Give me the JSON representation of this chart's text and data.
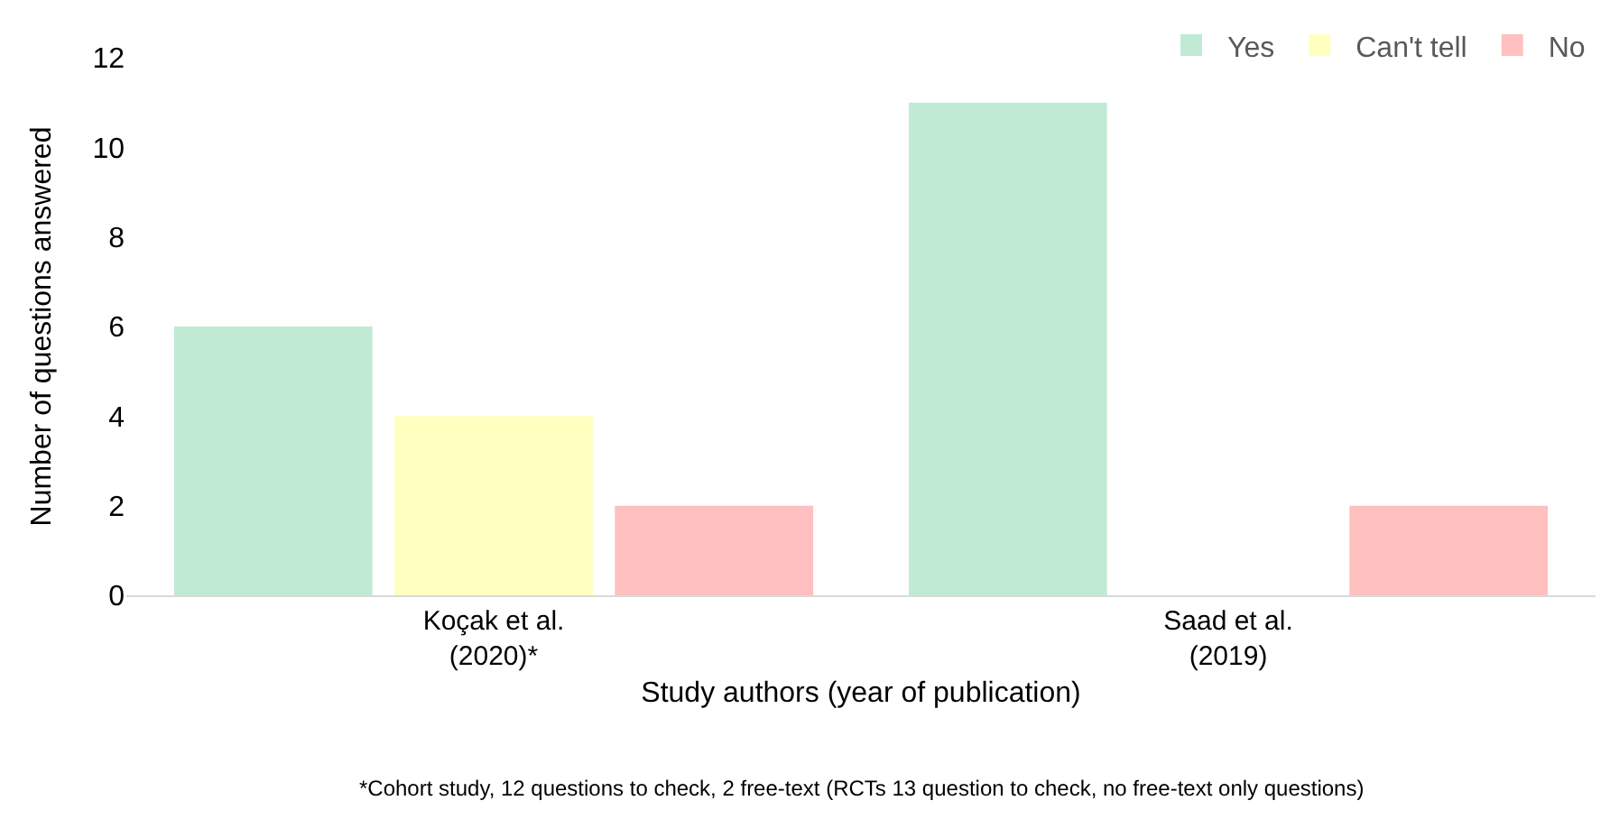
{
  "chart_data": {
    "type": "bar",
    "xlabel": "Study authors (year of publication)",
    "ylabel": "Number of questions answered",
    "categories": [
      "Koçak et al.\n(2020)*",
      "Saad et al.\n(2019)"
    ],
    "series": [
      {
        "name": "Yes",
        "color": "#c1ead5",
        "values": [
          6,
          11
        ]
      },
      {
        "name": "Can't tell",
        "color": "#ffffc0",
        "values": [
          4,
          0
        ]
      },
      {
        "name": "No",
        "color": "#ffc0bf",
        "values": [
          2,
          2
        ]
      }
    ],
    "ylim": [
      0,
      12
    ],
    "yticks": [
      0,
      2,
      4,
      6,
      8,
      10,
      12
    ],
    "grid": false,
    "legend": "top right",
    "annotations": [
      "*Cohort study, 12 questions to check, 2 free-text (RCTs 13 question to check, no free-text only questions)"
    ]
  }
}
